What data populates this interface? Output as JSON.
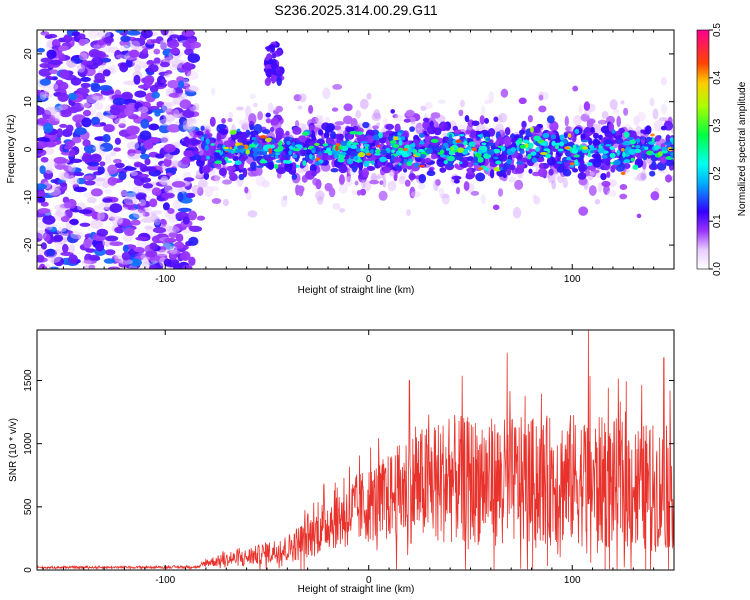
{
  "chart_data": [
    {
      "type": "heatmap",
      "title": "S236.2025.314.00.29.G11",
      "xlabel": "Height of straight line (km)",
      "ylabel": "Frequency (Hz)",
      "xlim": [
        -163,
        150
      ],
      "ylim": [
        -25,
        25
      ],
      "xticks": [
        -100,
        0,
        100
      ],
      "yticks": [
        -20,
        -10,
        0,
        10,
        20
      ],
      "grid": false,
      "colorbar": {
        "label": "Normalized spectral amplitude",
        "range": [
          0,
          0.5
        ],
        "ticks": [
          "0.0",
          "0.1",
          "0.2",
          "0.3",
          "0.4",
          "0.5"
        ]
      },
      "regions": [
        {
          "x_range": [
            -163,
            -85
          ],
          "freq_range": [
            -25,
            25
          ],
          "description_level": "broadband scatter, amplitude 0.05-0.15"
        },
        {
          "x_range": [
            -85,
            150
          ],
          "freq_center": 0,
          "freq_halfwidth_core": 5,
          "freq_halfwidth_halo": 12,
          "peak_amplitude": 0.45
        },
        {
          "x_range": [
            -50,
            -43
          ],
          "freq_range": [
            14,
            22
          ],
          "peak_amplitude": 0.12
        }
      ]
    },
    {
      "type": "line",
      "title": "",
      "xlabel": "Height of straight line (km)",
      "ylabel": "SNR (10 * v/v)",
      "xlim": [
        -163,
        150
      ],
      "ylim": [
        0,
        1900
      ],
      "xticks": [
        -100,
        0,
        100
      ],
      "yticks": [
        0,
        500,
        1000,
        1500
      ],
      "grid": false,
      "series_color": "#e8322b",
      "envelope": {
        "x": [
          -163,
          -100,
          -83,
          -80,
          -60,
          -40,
          -30,
          -20,
          -10,
          0,
          10,
          20,
          40,
          60,
          80,
          100,
          120,
          140,
          150
        ],
        "mean": [
          20,
          22,
          25,
          60,
          100,
          170,
          250,
          380,
          450,
          520,
          580,
          650,
          720,
          700,
          700,
          720,
          680,
          650,
          640
        ],
        "spread": [
          8,
          10,
          12,
          40,
          80,
          130,
          200,
          260,
          320,
          360,
          400,
          520,
          600,
          600,
          600,
          620,
          620,
          600,
          560
        ]
      },
      "peaks": [
        {
          "x": 20,
          "y": 1500
        },
        {
          "x": 68,
          "y": 1720
        },
        {
          "x": 108,
          "y": 1900
        },
        {
          "x": 145,
          "y": 1680
        }
      ]
    }
  ]
}
